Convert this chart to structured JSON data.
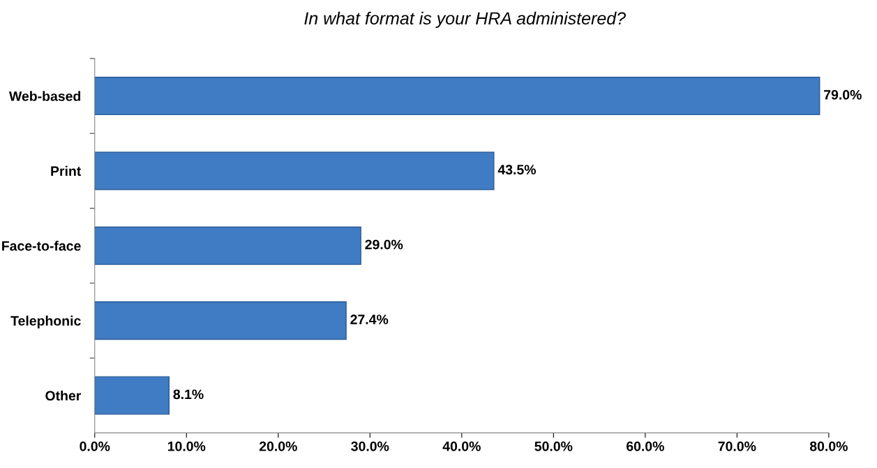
{
  "chart_data": {
    "type": "bar",
    "orientation": "horizontal",
    "title": "In what format is your HRA administered?",
    "categories": [
      "Web-based",
      "Print",
      "Face-to-face",
      "Telephonic",
      "Other"
    ],
    "values": [
      79.0,
      43.5,
      29.0,
      27.4,
      8.1
    ],
    "value_labels": [
      "79.0%",
      "43.5%",
      "29.0%",
      "27.4%",
      "8.1%"
    ],
    "color": "#3f7cc4",
    "xlim": [
      0,
      80
    ],
    "xticks": [
      {
        "value": 0,
        "label": "0.0%"
      },
      {
        "value": 10,
        "label": "10.0%"
      },
      {
        "value": 20,
        "label": "20.0%"
      },
      {
        "value": 30,
        "label": "30.0%"
      },
      {
        "value": 40,
        "label": "40.0%"
      },
      {
        "value": 50,
        "label": "50.0%"
      },
      {
        "value": 60,
        "label": "60.0%"
      },
      {
        "value": 70,
        "label": "70.0%"
      },
      {
        "value": 80,
        "label": "80.0%"
      }
    ],
    "grid": false,
    "legend": false
  }
}
